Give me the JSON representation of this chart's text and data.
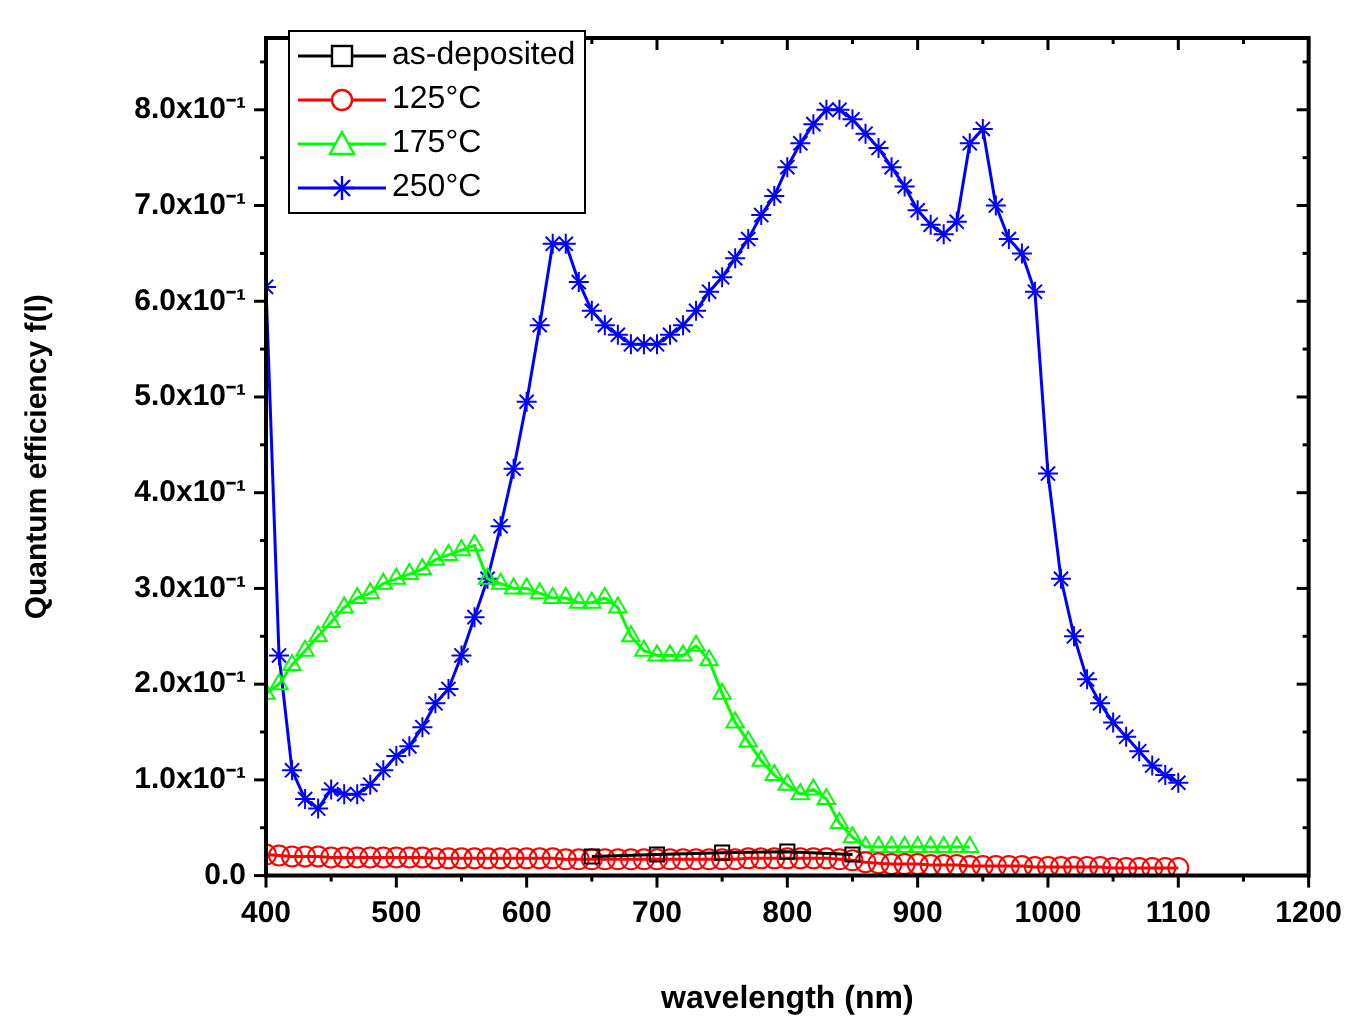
{
  "chart_data": {
    "type": "line",
    "xlabel": "wavelength (nm)",
    "ylabel": "Quantum efficiency f(l)",
    "xlim": [
      400,
      1200
    ],
    "xticks": [
      400,
      500,
      600,
      700,
      800,
      900,
      1000,
      1100,
      1200
    ],
    "ylim": [
      0,
      0.875
    ],
    "yticks": [
      {
        "value": 0,
        "label": "0.0"
      },
      {
        "value": 0.1,
        "label": "1.0x10⁻¹"
      },
      {
        "value": 0.2,
        "label": "2.0x10⁻¹"
      },
      {
        "value": 0.3,
        "label": "3.0x10⁻¹"
      },
      {
        "value": 0.4,
        "label": "4.0x10⁻¹"
      },
      {
        "value": 0.5,
        "label": "5.0x10⁻¹"
      },
      {
        "value": 0.6,
        "label": "6.0x10⁻¹"
      },
      {
        "value": 0.7,
        "label": "7.0x10⁻¹"
      },
      {
        "value": 0.8,
        "label": "8.0x10⁻¹"
      }
    ],
    "grid": false,
    "legend": "top left",
    "line_style": "solid",
    "series": [
      {
        "name": "as-deposited",
        "color": "#000000",
        "marker": "square",
        "x": [
          650,
          700,
          750,
          800,
          850
        ],
        "values": [
          0.02,
          0.022,
          0.024,
          0.025,
          0.022
        ]
      },
      {
        "name": "125°C",
        "color": "#ff0000",
        "marker": "circle",
        "x": [
          400,
          410,
          420,
          430,
          440,
          450,
          460,
          470,
          480,
          490,
          500,
          510,
          520,
          530,
          540,
          550,
          560,
          570,
          580,
          590,
          600,
          610,
          620,
          630,
          640,
          650,
          660,
          670,
          680,
          690,
          700,
          710,
          720,
          730,
          740,
          750,
          760,
          770,
          780,
          790,
          800,
          810,
          820,
          830,
          840,
          850,
          860,
          870,
          880,
          890,
          900,
          910,
          920,
          930,
          940,
          950,
          960,
          970,
          980,
          990,
          1000,
          1010,
          1020,
          1030,
          1040,
          1050,
          1060,
          1070,
          1080,
          1090,
          1100
        ],
        "values": [
          0.022,
          0.021,
          0.02,
          0.02,
          0.02,
          0.019,
          0.019,
          0.019,
          0.019,
          0.019,
          0.019,
          0.019,
          0.019,
          0.018,
          0.018,
          0.018,
          0.018,
          0.018,
          0.018,
          0.018,
          0.018,
          0.018,
          0.018,
          0.017,
          0.017,
          0.017,
          0.017,
          0.017,
          0.017,
          0.017,
          0.017,
          0.017,
          0.017,
          0.017,
          0.017,
          0.017,
          0.017,
          0.018,
          0.018,
          0.018,
          0.018,
          0.018,
          0.018,
          0.018,
          0.017,
          0.016,
          0.014,
          0.013,
          0.012,
          0.012,
          0.012,
          0.011,
          0.011,
          0.011,
          0.01,
          0.01,
          0.01,
          0.01,
          0.01,
          0.009,
          0.009,
          0.009,
          0.009,
          0.009,
          0.009,
          0.008,
          0.008,
          0.008,
          0.008,
          0.008,
          0.008
        ]
      },
      {
        "name": "175°C",
        "color": "#00ff00",
        "marker": "triangle",
        "x": [
          400,
          410,
          420,
          430,
          440,
          450,
          460,
          470,
          480,
          490,
          500,
          510,
          520,
          530,
          540,
          550,
          560,
          570,
          580,
          590,
          600,
          610,
          620,
          630,
          640,
          650,
          660,
          670,
          680,
          690,
          700,
          710,
          720,
          730,
          740,
          750,
          760,
          770,
          780,
          790,
          800,
          810,
          820,
          830,
          840,
          850,
          860,
          870,
          880,
          890,
          900,
          910,
          920,
          930,
          940
        ],
        "values": [
          0.19,
          0.2,
          0.22,
          0.235,
          0.25,
          0.265,
          0.28,
          0.29,
          0.295,
          0.305,
          0.31,
          0.315,
          0.32,
          0.33,
          0.335,
          0.34,
          0.345,
          0.31,
          0.305,
          0.3,
          0.3,
          0.295,
          0.29,
          0.29,
          0.285,
          0.285,
          0.29,
          0.28,
          0.25,
          0.235,
          0.23,
          0.23,
          0.23,
          0.24,
          0.225,
          0.19,
          0.16,
          0.14,
          0.12,
          0.105,
          0.095,
          0.085,
          0.09,
          0.08,
          0.055,
          0.04,
          0.03,
          0.03,
          0.03,
          0.03,
          0.03,
          0.03,
          0.03,
          0.03,
          0.03
        ]
      },
      {
        "name": "250°C",
        "color": "#0000ff",
        "marker": "cross",
        "x": [
          400,
          410,
          420,
          430,
          440,
          450,
          460,
          470,
          480,
          490,
          500,
          510,
          520,
          530,
          540,
          550,
          560,
          570,
          580,
          590,
          600,
          610,
          620,
          630,
          640,
          650,
          660,
          670,
          680,
          690,
          700,
          710,
          720,
          730,
          740,
          750,
          760,
          770,
          780,
          790,
          800,
          810,
          820,
          830,
          840,
          850,
          860,
          870,
          880,
          890,
          900,
          910,
          920,
          930,
          940,
          950,
          960,
          970,
          980,
          990,
          1000,
          1010,
          1020,
          1030,
          1040,
          1050,
          1060,
          1070,
          1080,
          1090,
          1100
        ],
        "values": [
          0.615,
          0.23,
          0.11,
          0.08,
          0.07,
          0.09,
          0.085,
          0.085,
          0.095,
          0.11,
          0.125,
          0.135,
          0.155,
          0.18,
          0.195,
          0.23,
          0.27,
          0.31,
          0.365,
          0.425,
          0.495,
          0.575,
          0.66,
          0.66,
          0.62,
          0.59,
          0.575,
          0.565,
          0.555,
          0.555,
          0.555,
          0.565,
          0.575,
          0.59,
          0.61,
          0.625,
          0.645,
          0.665,
          0.69,
          0.71,
          0.74,
          0.765,
          0.785,
          0.8,
          0.8,
          0.79,
          0.775,
          0.76,
          0.74,
          0.72,
          0.695,
          0.68,
          0.67,
          0.683,
          0.765,
          0.78,
          0.7,
          0.665,
          0.65,
          0.61,
          0.42,
          0.31,
          0.25,
          0.205,
          0.18,
          0.16,
          0.145,
          0.13,
          0.115,
          0.105,
          0.097
        ]
      }
    ]
  }
}
